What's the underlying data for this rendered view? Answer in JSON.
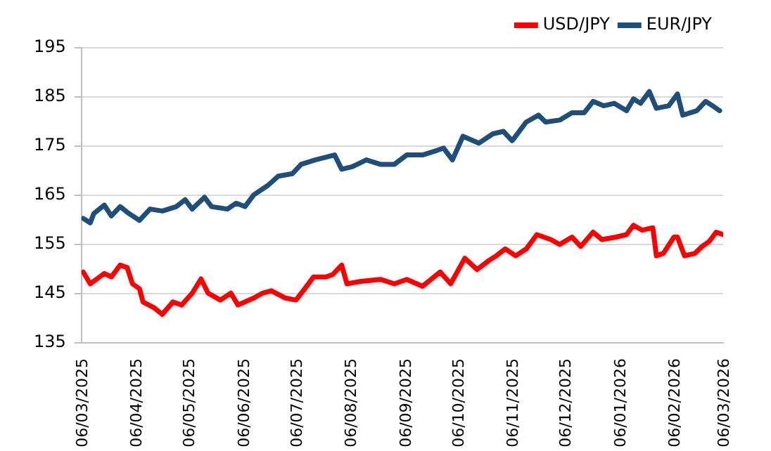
{
  "chart_data": {
    "type": "line",
    "legend": "top right",
    "grid": "y",
    "marker": "none",
    "line_style": "solid",
    "xlim": [
      "2025-03-06",
      "2026-03-06"
    ],
    "xticks": [
      {
        "value": "2025-03-06",
        "label": "06/03/2025"
      },
      {
        "value": "2025-04-06",
        "label": "06/04/2025"
      },
      {
        "value": "2025-05-06",
        "label": "06/05/2025"
      },
      {
        "value": "2025-06-06",
        "label": "06/06/2025"
      },
      {
        "value": "2025-07-06",
        "label": "06/07/2025"
      },
      {
        "value": "2025-08-06",
        "label": "06/08/2025"
      },
      {
        "value": "2025-09-06",
        "label": "06/09/2025"
      },
      {
        "value": "2025-10-06",
        "label": "06/10/2025"
      },
      {
        "value": "2025-11-06",
        "label": "06/11/2025"
      },
      {
        "value": "2025-12-06",
        "label": "06/12/2025"
      },
      {
        "value": "2026-01-06",
        "label": "06/01/2026"
      },
      {
        "value": "2026-02-06",
        "label": "06/02/2026"
      },
      {
        "value": "2026-03-06",
        "label": "06/03/2026"
      }
    ],
    "ylim": [
      135,
      195
    ],
    "yticks": [
      135,
      145,
      155,
      165,
      175,
      185,
      195
    ],
    "series": [
      {
        "name": "USD/JPY",
        "color": "#ff0000",
        "x": [
          "2025-03-07",
          "2025-03-11",
          "2025-03-19",
          "2025-03-23",
          "2025-03-28",
          "2025-04-01",
          "2025-04-04",
          "2025-04-08",
          "2025-04-10",
          "2025-04-16",
          "2025-04-21",
          "2025-04-27",
          "2025-05-02",
          "2025-05-08",
          "2025-05-13",
          "2025-05-17",
          "2025-05-24",
          "2025-05-30",
          "2025-06-03",
          "2025-06-12",
          "2025-06-17",
          "2025-06-22",
          "2025-06-30",
          "2025-07-06",
          "2025-07-11",
          "2025-07-16",
          "2025-07-23",
          "2025-07-27",
          "2025-08-01",
          "2025-08-04",
          "2025-08-12",
          "2025-08-23",
          "2025-08-31",
          "2025-09-07",
          "2025-09-16",
          "2025-09-26",
          "2025-10-02",
          "2025-10-10",
          "2025-10-17",
          "2025-10-24",
          "2025-10-28",
          "2025-11-02",
          "2025-11-08",
          "2025-11-14",
          "2025-11-20",
          "2025-11-28",
          "2025-12-03",
          "2025-12-10",
          "2025-12-15",
          "2025-12-22",
          "2025-12-27",
          "2026-01-04",
          "2026-01-10",
          "2026-01-14",
          "2026-01-19",
          "2026-01-25",
          "2026-01-27",
          "2026-01-31",
          "2026-02-06",
          "2026-02-08",
          "2026-02-12",
          "2026-02-18",
          "2026-02-22",
          "2026-02-26",
          "2026-03-02",
          "2026-03-06"
        ],
        "values": [
          149.4,
          147,
          149.1,
          148.4,
          150.8,
          150.3,
          147,
          146,
          143.3,
          142.2,
          140.8,
          143.3,
          142.7,
          145.1,
          148,
          145.1,
          143.7,
          145.1,
          142.7,
          144.1,
          145.1,
          145.6,
          144.1,
          143.7,
          146,
          148.4,
          148.4,
          148.9,
          150.8,
          147,
          147.5,
          147.9,
          147,
          147.9,
          146.5,
          149.4,
          147,
          152.2,
          149.9,
          151.8,
          152.7,
          154.1,
          152.7,
          154.1,
          157,
          156,
          155,
          156.5,
          154.6,
          157.5,
          156,
          156.5,
          157,
          158.9,
          157.9,
          158.4,
          152.7,
          153.2,
          156.5,
          156.5,
          152.7,
          153.2,
          154.6,
          155.6,
          157.5,
          157
        ]
      },
      {
        "name": "EUR/JPY",
        "color": "#1f4e79",
        "x": [
          "2025-03-07",
          "2025-03-11",
          "2025-03-13",
          "2025-03-19",
          "2025-03-23",
          "2025-03-28",
          "2025-04-02",
          "2025-04-08",
          "2025-04-14",
          "2025-04-21",
          "2025-04-29",
          "2025-05-04",
          "2025-05-08",
          "2025-05-15",
          "2025-05-19",
          "2025-05-28",
          "2025-06-02",
          "2025-06-07",
          "2025-06-12",
          "2025-06-20",
          "2025-06-26",
          "2025-07-04",
          "2025-07-09",
          "2025-07-17",
          "2025-07-28",
          "2025-08-01",
          "2025-08-07",
          "2025-08-15",
          "2025-08-23",
          "2025-08-31",
          "2025-09-07",
          "2025-09-16",
          "2025-09-24",
          "2025-09-28",
          "2025-10-03",
          "2025-10-09",
          "2025-10-18",
          "2025-10-26",
          "2025-11-01",
          "2025-11-06",
          "2025-11-14",
          "2025-11-21",
          "2025-11-25",
          "2025-12-03",
          "2025-12-10",
          "2025-12-17",
          "2025-12-22",
          "2025-12-28",
          "2026-01-03",
          "2026-01-10",
          "2026-01-14",
          "2026-01-18",
          "2026-01-23",
          "2026-01-27",
          "2026-02-03",
          "2026-02-08",
          "2026-02-11",
          "2026-02-19",
          "2026-02-24",
          "2026-02-28",
          "2026-03-04"
        ],
        "values": [
          160.3,
          159.4,
          161.3,
          163,
          160.8,
          162.7,
          161.3,
          159.9,
          162.2,
          161.8,
          162.7,
          164.1,
          162.2,
          164.6,
          162.7,
          162.2,
          163.4,
          162.7,
          165.1,
          167,
          168.9,
          169.4,
          171.3,
          172.2,
          173.2,
          170.3,
          170.8,
          172.2,
          171.3,
          171.3,
          173.2,
          173.2,
          174.1,
          174.6,
          172.2,
          177,
          175.6,
          177.5,
          178,
          176.1,
          179.9,
          181.3,
          179.9,
          180.3,
          181.8,
          181.8,
          184.1,
          183.2,
          183.7,
          182.2,
          184.6,
          183.7,
          186.1,
          182.7,
          183.2,
          185.6,
          181.3,
          182.2,
          184.1,
          183.2,
          182.2
        ]
      }
    ]
  }
}
